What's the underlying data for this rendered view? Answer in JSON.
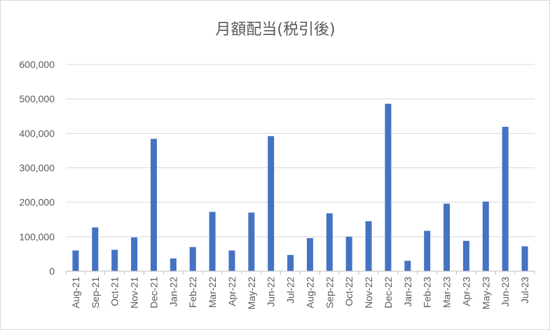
{
  "chart_data": {
    "type": "bar",
    "title": "月額配当(税引後)",
    "xlabel": "",
    "ylabel": "",
    "categories": [
      "Aug-21",
      "Sep-21",
      "Oct-21",
      "Nov-21",
      "Dec-21",
      "Jan-22",
      "Feb-22",
      "Mar-22",
      "Apr-22",
      "May-22",
      "Jun-22",
      "Jul-22",
      "Aug-22",
      "Sep-22",
      "Oct-22",
      "Nov-22",
      "Dec-22",
      "Jan-23",
      "Feb-23",
      "Mar-23",
      "Apr-23",
      "May-23",
      "Jun-23",
      "Jul-23"
    ],
    "values": [
      60000,
      127000,
      62000,
      98000,
      384000,
      37000,
      70000,
      172000,
      60000,
      170000,
      392000,
      47000,
      96000,
      168000,
      100000,
      145000,
      486000,
      30000,
      117000,
      196000,
      88000,
      202000,
      419000,
      72000
    ],
    "ylim": [
      0,
      600000
    ],
    "yticks": [
      0,
      100000,
      200000,
      300000,
      400000,
      500000,
      600000
    ],
    "ytick_labels": [
      "0",
      "100,000",
      "200,000",
      "300,000",
      "400,000",
      "500,000",
      "600,000"
    ],
    "grid": true,
    "legend": "none",
    "colors": {
      "bar": "#4472c4",
      "grid": "#d9d9d9",
      "axis": "#bfbfbf",
      "text": "#595959"
    }
  }
}
